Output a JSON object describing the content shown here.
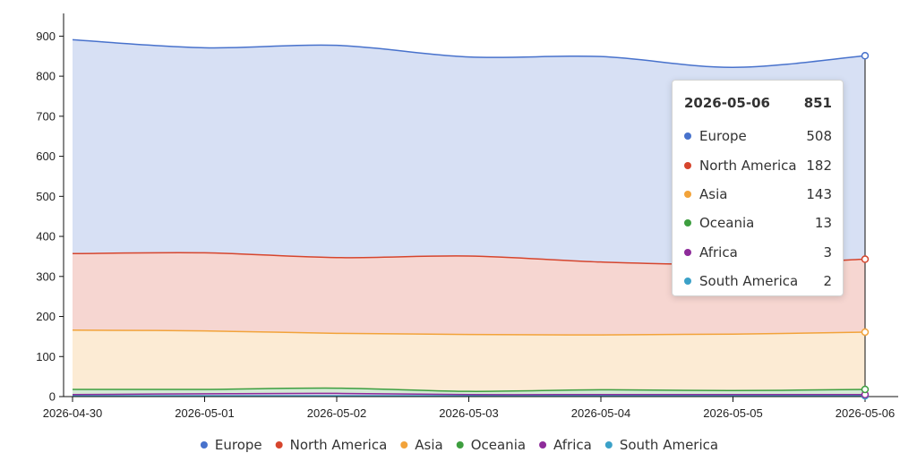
{
  "chart_data": {
    "type": "area",
    "stacked": true,
    "x": [
      "2026-04-30",
      "2026-05-01",
      "2026-05-02",
      "2026-05-03",
      "2026-05-04",
      "2026-05-05",
      "2026-05-06"
    ],
    "ylim": [
      0,
      950
    ],
    "yticks": [
      0,
      100,
      200,
      300,
      400,
      500,
      600,
      700,
      800,
      900
    ],
    "grid": false,
    "legend_position": "bottom",
    "series": [
      {
        "name": "South America",
        "color": "#3ba1c8",
        "values": [
          2,
          2,
          2,
          2,
          2,
          2,
          2
        ]
      },
      {
        "name": "Africa",
        "color": "#8e2c9a",
        "values": [
          3,
          5,
          6,
          3,
          3,
          3,
          3
        ]
      },
      {
        "name": "Oceania",
        "color": "#3d9e3f",
        "values": [
          13,
          11,
          13,
          8,
          12,
          10,
          13
        ]
      },
      {
        "name": "Asia",
        "color": "#f2a33a",
        "values": [
          148,
          146,
          137,
          142,
          137,
          141,
          143
        ]
      },
      {
        "name": "North America",
        "color": "#d6452d",
        "values": [
          191,
          195,
          189,
          196,
          182,
          174,
          182
        ]
      },
      {
        "name": "Europe",
        "color": "#4872cc",
        "values": [
          534,
          512,
          530,
          497,
          513,
          492,
          508
        ]
      }
    ],
    "legend_order": [
      "Europe",
      "North America",
      "Asia",
      "Oceania",
      "Africa",
      "South America"
    ],
    "tooltip": {
      "date": "2026-05-06",
      "total": "851",
      "rows": [
        {
          "name": "Europe",
          "value": "508",
          "color": "#4872cc"
        },
        {
          "name": "North America",
          "value": "182",
          "color": "#d6452d"
        },
        {
          "name": "Asia",
          "value": "143",
          "color": "#f2a33a"
        },
        {
          "name": "Oceania",
          "value": "13",
          "color": "#3d9e3f"
        },
        {
          "name": "Africa",
          "value": "3",
          "color": "#8e2c9a"
        },
        {
          "name": "South America",
          "value": "2",
          "color": "#3ba1c8"
        }
      ]
    }
  }
}
